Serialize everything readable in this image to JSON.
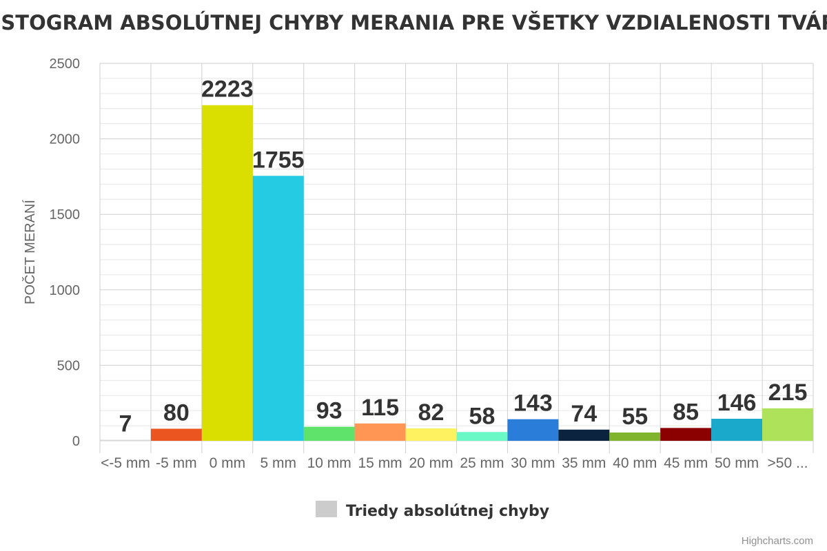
{
  "chart_data": {
    "type": "bar",
    "title": "HISTOGRAM ABSOLÚTNEJ CHYBY MERANIA PRE VŠETKY VZDIALENOSTI TVÁRE",
    "xlabel": "",
    "ylabel": "POČET MERANÍ",
    "ylim": [
      0,
      2500
    ],
    "y_ticks": [
      0,
      500,
      1000,
      1500,
      2000,
      2500
    ],
    "grid": true,
    "categories": [
      "<-5 mm",
      "-5 mm",
      "0 mm",
      "5 mm",
      "10 mm",
      "15 mm",
      "20 mm",
      "25 mm",
      "30 mm",
      "35 mm",
      "40 mm",
      "45 mm",
      "50 mm",
      ">50 ..."
    ],
    "series": [
      {
        "name": "Triedy absolútnej chyby",
        "values": [
          7,
          80,
          2223,
          1755,
          93,
          115,
          82,
          58,
          143,
          74,
          55,
          85,
          146,
          215
        ],
        "colors": [
          "#d9d9d9",
          "#ea5520",
          "#dbdf00",
          "#25cae3",
          "#5fe36b",
          "#ff9654",
          "#fff260",
          "#6bf8c7",
          "#2a7ed9",
          "#0c2340",
          "#7fb42c",
          "#8b0000",
          "#1aa9cb",
          "#aee25a"
        ]
      }
    ],
    "data_labels": [
      "7",
      "80",
      "2223",
      "1755",
      "93",
      "115",
      "82",
      "58",
      "143",
      "74",
      "55",
      "85",
      "146",
      "215"
    ],
    "legend": {
      "position": "bottom-center",
      "label": "Triedy absolútnej chyby",
      "color": "#cccccc"
    }
  },
  "credits": "Highcharts.com"
}
